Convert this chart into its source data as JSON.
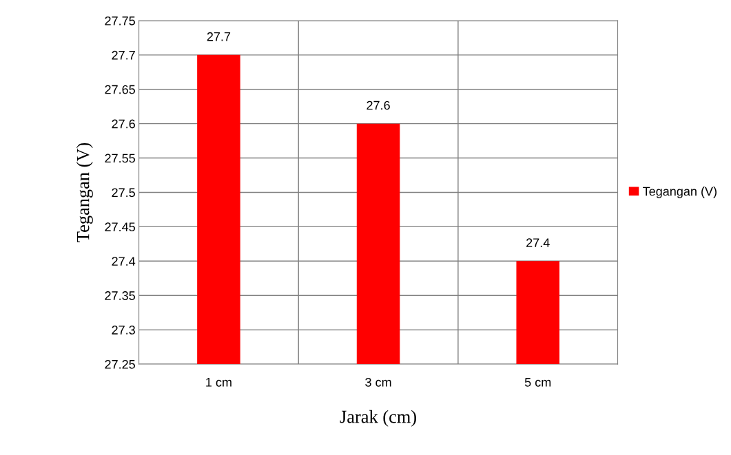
{
  "chart_data": {
    "type": "bar",
    "xlabel": "Jarak (cm)",
    "ylabel": "Tegangan (V)",
    "categories": [
      "1 cm",
      "3 cm",
      "5 cm"
    ],
    "series": [
      {
        "name": "Tegangan (V)",
        "color": "#ff0000",
        "values": [
          27.7,
          27.6,
          27.4
        ]
      }
    ],
    "ylim": [
      27.25,
      27.75
    ],
    "yticks": [
      27.25,
      27.3,
      27.35,
      27.4,
      27.45,
      27.5,
      27.55,
      27.6,
      27.65,
      27.7,
      27.75
    ],
    "grid": true,
    "legend": "right",
    "data_labels": true
  }
}
